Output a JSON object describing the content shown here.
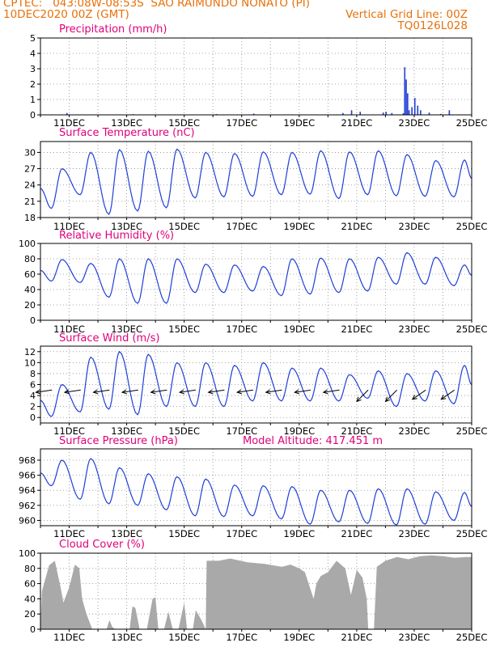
{
  "header": {
    "line1": "CPTEC:   043:08W-08:53S  SAO RAIMUNDO NONATO (PI)",
    "line2": "10DEC2020 00Z (GMT)",
    "grid_note": "Vertical Grid Line: 00Z",
    "code": "TQ0126L028"
  },
  "colors": {
    "header": "#e8700a",
    "title": "#e0007a",
    "series": "#1f3fd8",
    "cloud": "#a9a9a9",
    "wind_arrow": "#000000",
    "grid": "#8c8c8c"
  },
  "x_ticks": [
    "11DEC",
    "13DEC",
    "15DEC",
    "17DEC",
    "19DEC",
    "21DEC",
    "23DEC",
    "25DEC"
  ],
  "chart_data": [
    {
      "type": "bar",
      "title": "Precipitation (mm/h)",
      "ylim": [
        0,
        5
      ],
      "yticks": [
        "0",
        "1",
        "2",
        "3",
        "4",
        "5"
      ],
      "x_range_days": [
        0,
        15
      ],
      "points": [
        [
          0.9,
          0.12
        ],
        [
          3.2,
          0.04
        ],
        [
          6.1,
          0.05
        ],
        [
          7.4,
          0.08
        ],
        [
          10.5,
          0.12
        ],
        [
          10.8,
          0.3
        ],
        [
          11.1,
          0.2
        ],
        [
          11.9,
          0.15
        ],
        [
          12.0,
          0.2
        ],
        [
          12.2,
          0.12
        ],
        [
          12.6,
          0.1
        ],
        [
          12.65,
          3.1
        ],
        [
          12.7,
          2.3
        ],
        [
          12.75,
          1.4
        ],
        [
          12.8,
          0.3
        ],
        [
          12.9,
          0.5
        ],
        [
          13.0,
          1.1
        ],
        [
          13.1,
          0.6
        ],
        [
          13.2,
          0.3
        ],
        [
          13.5,
          0.15
        ],
        [
          13.9,
          0.06
        ],
        [
          14.2,
          0.3
        ]
      ]
    },
    {
      "type": "line",
      "title": "Surface Temperature (nC)",
      "ylim": [
        18,
        32
      ],
      "yticks": [
        "18",
        "21",
        "24",
        "27",
        "30"
      ],
      "x_range_days": [
        0,
        15
      ],
      "highs": [
        27.0,
        30.0,
        30.5,
        30.2,
        30.6,
        30.0,
        29.8,
        30.1,
        30.0,
        30.3,
        30.1,
        30.3,
        29.6,
        28.5,
        28.6
      ],
      "lows": [
        19.7,
        22.2,
        18.6,
        19.2,
        19.8,
        21.6,
        21.8,
        21.9,
        22.2,
        22.3,
        21.5,
        22.2,
        22.0,
        21.9,
        21.8
      ]
    },
    {
      "type": "line",
      "title": "Relative Humidity (%)",
      "ylim": [
        0,
        100
      ],
      "yticks": [
        "0",
        "20",
        "40",
        "60",
        "80",
        "100"
      ],
      "x_range_days": [
        0,
        15
      ],
      "highs": [
        79,
        74,
        80,
        80,
        80,
        73,
        72,
        70,
        80,
        81,
        80,
        82,
        88,
        82,
        72
      ],
      "lows": [
        51,
        49,
        30,
        22,
        22,
        36,
        36,
        38,
        32,
        34,
        36,
        38,
        47,
        47,
        45
      ]
    },
    {
      "type": "line",
      "title": "Surface Wind (m/s)",
      "ylim": [
        -1,
        13
      ],
      "yticks": [
        "0",
        "2",
        "4",
        "6",
        "8",
        "10",
        "12"
      ],
      "x_range_days": [
        0,
        15
      ],
      "highs": [
        6,
        11,
        12,
        11.5,
        10,
        10,
        9.5,
        10,
        9,
        9,
        7.8,
        8.5,
        8,
        8.5,
        9.5
      ],
      "lows": [
        0.2,
        1,
        1.5,
        0.5,
        2,
        2,
        2,
        3,
        3,
        3,
        3,
        3.5,
        2,
        3,
        2.5
      ],
      "arrow_every_days": 1
    },
    {
      "type": "line",
      "title": "Surface Pressure (hPa)",
      "subtitle": "Model Altitude: 417.451 m",
      "ylim": [
        959.3,
        969.5
      ],
      "yticks": [
        "960",
        "962",
        "964",
        "966",
        "968"
      ],
      "x_range_days": [
        0,
        15
      ],
      "highs": [
        968.0,
        968.2,
        967.0,
        966.2,
        965.8,
        965.5,
        964.7,
        964.6,
        964.5,
        964.0,
        964.0,
        964.2,
        964.2,
        963.8,
        963.7
      ],
      "lows": [
        964.6,
        962.8,
        962.2,
        962.0,
        961.4,
        960.6,
        960.5,
        960.6,
        960.2,
        959.5,
        959.8,
        959.6,
        959.4,
        959.5,
        960.0
      ]
    },
    {
      "type": "area",
      "title": "Cloud Cover (%)",
      "ylim": [
        0,
        100
      ],
      "yticks": [
        "0",
        "20",
        "40",
        "60",
        "80",
        "100"
      ],
      "x_range_days": [
        0,
        15
      ],
      "points": [
        [
          0,
          0
        ],
        [
          0.05,
          50
        ],
        [
          0.3,
          84
        ],
        [
          0.5,
          90
        ],
        [
          0.7,
          55
        ],
        [
          0.8,
          35
        ],
        [
          1.0,
          55
        ],
        [
          1.2,
          85
        ],
        [
          1.35,
          80
        ],
        [
          1.45,
          40
        ],
        [
          1.6,
          20
        ],
        [
          1.8,
          0
        ],
        [
          2.3,
          0
        ],
        [
          2.4,
          12
        ],
        [
          2.5,
          3
        ],
        [
          2.6,
          0
        ],
        [
          3.1,
          0
        ],
        [
          3.2,
          30
        ],
        [
          3.3,
          28
        ],
        [
          3.45,
          0
        ],
        [
          3.7,
          0
        ],
        [
          3.9,
          40
        ],
        [
          4.0,
          42
        ],
        [
          4.1,
          0
        ],
        [
          4.3,
          0
        ],
        [
          4.45,
          23
        ],
        [
          4.6,
          0
        ],
        [
          4.8,
          0
        ],
        [
          5.0,
          35
        ],
        [
          5.1,
          0
        ],
        [
          5.3,
          0
        ],
        [
          5.4,
          25
        ],
        [
          5.6,
          12
        ],
        [
          5.75,
          0
        ],
        [
          5.78,
          90
        ],
        [
          6.2,
          90
        ],
        [
          6.6,
          93
        ],
        [
          7.2,
          88
        ],
        [
          7.8,
          86
        ],
        [
          8.4,
          82
        ],
        [
          8.7,
          85
        ],
        [
          9.0,
          80
        ],
        [
          9.2,
          75
        ],
        [
          9.5,
          40
        ],
        [
          9.6,
          60
        ],
        [
          9.75,
          70
        ],
        [
          10.0,
          75
        ],
        [
          10.3,
          90
        ],
        [
          10.6,
          80
        ],
        [
          10.8,
          45
        ],
        [
          11.0,
          78
        ],
        [
          11.2,
          68
        ],
        [
          11.35,
          40
        ],
        [
          11.4,
          0
        ],
        [
          11.6,
          0
        ],
        [
          11.7,
          82
        ],
        [
          12.0,
          90
        ],
        [
          12.4,
          95
        ],
        [
          12.8,
          92
        ],
        [
          13.2,
          96
        ],
        [
          13.6,
          97
        ],
        [
          14.0,
          96
        ],
        [
          14.4,
          94
        ],
        [
          14.8,
          95
        ],
        [
          15,
          95
        ],
        [
          15,
          0
        ]
      ]
    }
  ]
}
